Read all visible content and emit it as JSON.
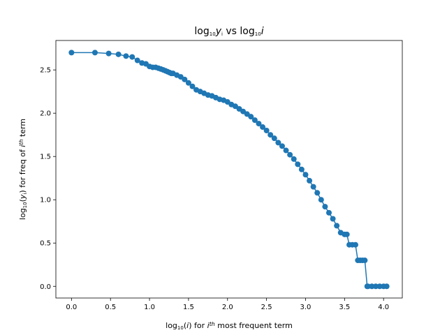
{
  "chart_data": {
    "type": "line",
    "title_parts": [
      "log",
      "10",
      "y",
      "i",
      " vs log",
      "10",
      "i"
    ],
    "xlabel_parts": [
      "log",
      "10",
      "(",
      "i",
      ") for ",
      "i",
      "th",
      " most frequent term"
    ],
    "ylabel_parts": [
      "log",
      "10",
      "(",
      "y",
      "i",
      ") for freq of ",
      "i",
      "th",
      " term"
    ],
    "xlim": [
      -0.2,
      4.24
    ],
    "ylim": [
      -0.135,
      2.84
    ],
    "xticks": [
      0.0,
      0.5,
      1.0,
      1.5,
      2.0,
      2.5,
      3.0,
      3.5,
      4.0
    ],
    "yticks": [
      0.0,
      0.5,
      1.0,
      1.5,
      2.0,
      2.5
    ],
    "xtick_labels": [
      "0.0",
      "0.5",
      "1.0",
      "1.5",
      "2.0",
      "2.5",
      "3.0",
      "3.5",
      "4.0"
    ],
    "ytick_labels": [
      "0.0",
      "0.5",
      "1.0",
      "1.5",
      "2.0",
      "2.5"
    ],
    "grid": false,
    "legend": "none",
    "series_color": "#1f77b4",
    "series": [
      {
        "x": [
          0.0,
          0.301,
          0.477,
          0.602,
          0.699,
          0.778,
          0.845,
          0.903,
          0.954,
          1.0,
          1.041,
          1.079,
          1.114,
          1.146,
          1.176,
          1.204,
          1.23,
          1.255,
          1.279,
          1.301,
          1.35,
          1.4,
          1.45,
          1.5,
          1.55,
          1.6,
          1.65,
          1.7,
          1.75,
          1.8,
          1.85,
          1.9,
          1.95,
          2.0,
          2.05,
          2.1,
          2.15,
          2.2,
          2.25,
          2.3,
          2.35,
          2.4,
          2.45,
          2.5,
          2.55,
          2.6,
          2.65,
          2.7,
          2.75,
          2.8,
          2.85,
          2.9,
          2.95,
          3.0,
          3.05,
          3.1,
          3.15,
          3.2,
          3.25,
          3.3,
          3.35,
          3.4,
          3.45,
          3.5,
          3.53,
          3.56,
          3.6,
          3.64,
          3.67,
          3.7,
          3.73,
          3.76,
          3.79,
          3.8,
          3.85,
          3.9,
          3.95,
          4.0,
          4.04
        ],
        "y": [
          2.7,
          2.7,
          2.69,
          2.68,
          2.66,
          2.65,
          2.61,
          2.58,
          2.57,
          2.54,
          2.53,
          2.53,
          2.52,
          2.51,
          2.5,
          2.49,
          2.48,
          2.47,
          2.46,
          2.46,
          2.44,
          2.42,
          2.39,
          2.35,
          2.31,
          2.27,
          2.25,
          2.23,
          2.21,
          2.2,
          2.18,
          2.16,
          2.15,
          2.13,
          2.1,
          2.08,
          2.05,
          2.02,
          1.99,
          1.96,
          1.92,
          1.88,
          1.84,
          1.8,
          1.75,
          1.71,
          1.66,
          1.62,
          1.57,
          1.52,
          1.47,
          1.41,
          1.35,
          1.29,
          1.22,
          1.15,
          1.08,
          1.0,
          0.92,
          0.85,
          0.78,
          0.7,
          0.62,
          0.6,
          0.6,
          0.48,
          0.48,
          0.48,
          0.3,
          0.3,
          0.3,
          0.3,
          0.0,
          0.0,
          0.0,
          0.0,
          0.0,
          0.0,
          0.0
        ]
      }
    ]
  }
}
